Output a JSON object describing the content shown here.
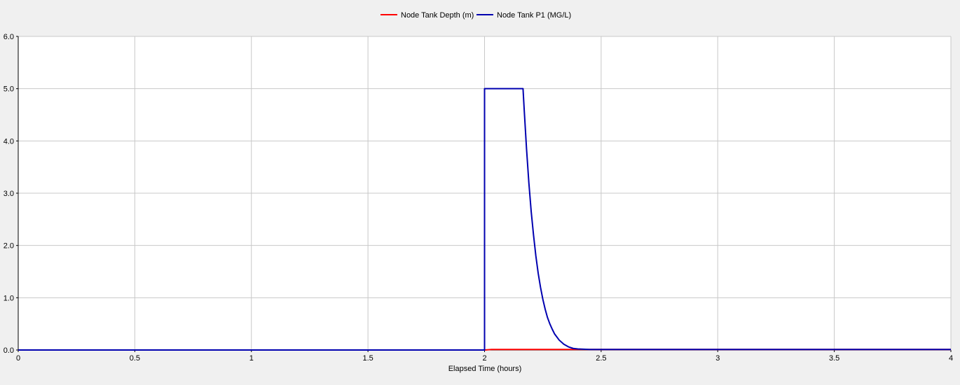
{
  "chart_data": {
    "type": "line",
    "title": "",
    "xlabel": "Elapsed Time (hours)",
    "ylabel": "",
    "xlim": [
      0,
      4
    ],
    "ylim": [
      0,
      6
    ],
    "x_ticks": [
      0,
      0.5,
      1,
      1.5,
      2,
      2.5,
      3,
      3.5,
      4
    ],
    "x_tick_labels": [
      "0",
      "0.5",
      "1",
      "1.5",
      "2",
      "2.5",
      "3",
      "3.5",
      "4"
    ],
    "y_ticks": [
      0,
      1,
      2,
      3,
      4,
      5,
      6
    ],
    "y_tick_labels": [
      "0.0",
      "1.0",
      "2.0",
      "3.0",
      "4.0",
      "5.0",
      "6.0"
    ],
    "grid": true,
    "legend_position": "top-center",
    "series": [
      {
        "name": "Node Tank Depth (m)",
        "color": "#ff0000",
        "x": [
          0,
          2.0,
          2.03,
          2.1,
          2.2,
          2.3,
          2.5,
          3.0,
          3.5,
          4.0
        ],
        "y": [
          0,
          0,
          0.01,
          0.01,
          0.01,
          0.01,
          0.01,
          0.01,
          0.01,
          0.01
        ]
      },
      {
        "name": "Node Tank P1 (MG/L)",
        "color": "#0000b0",
        "x": [
          0,
          2.0,
          2.0,
          2.165,
          2.17,
          2.18,
          2.19,
          2.2,
          2.21,
          2.22,
          2.23,
          2.24,
          2.25,
          2.26,
          2.27,
          2.28,
          2.29,
          2.3,
          2.32,
          2.34,
          2.36,
          2.38,
          2.4,
          2.45,
          2.5,
          3.0,
          3.5,
          4.0
        ],
        "y": [
          0,
          0,
          5.0,
          5.0,
          4.6,
          3.85,
          3.2,
          2.65,
          2.2,
          1.8,
          1.47,
          1.2,
          0.97,
          0.78,
          0.62,
          0.5,
          0.4,
          0.31,
          0.19,
          0.11,
          0.06,
          0.03,
          0.02,
          0.01,
          0.01,
          0.01,
          0.01,
          0.01
        ]
      }
    ]
  }
}
